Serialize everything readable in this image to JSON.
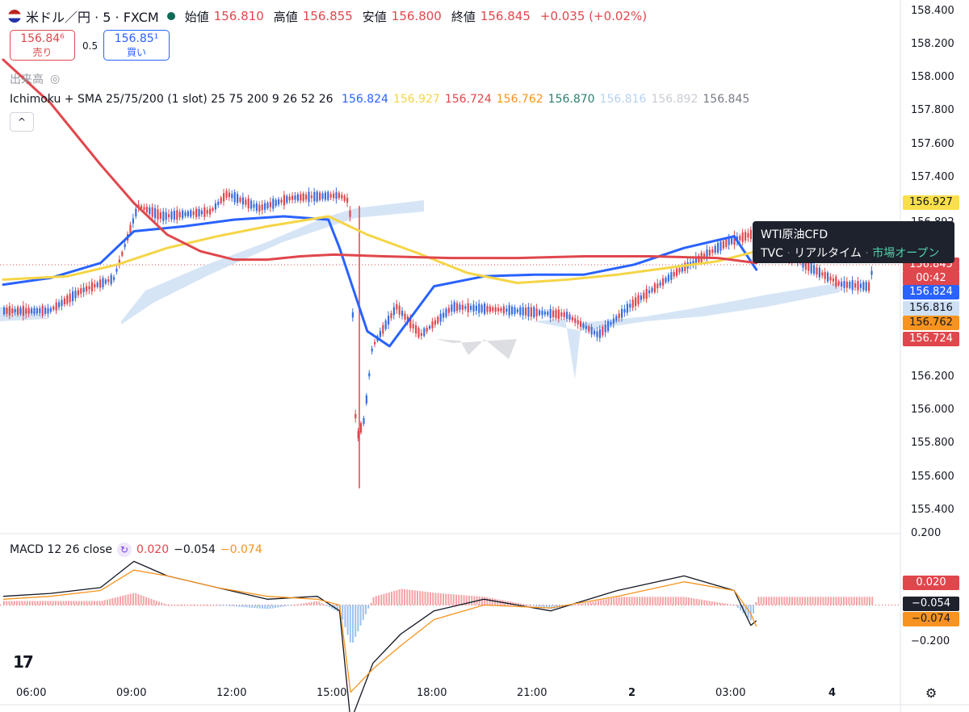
{
  "header": {
    "symbol_title": "米ドル／円 · 5 · FXCM",
    "open_label": "始値",
    "open": "156.810",
    "high_label": "高値",
    "high": "156.855",
    "low_label": "安値",
    "low": "156.800",
    "close_label": "終値",
    "close": "156.845",
    "change": "+0.035 (+0.02%)"
  },
  "trade": {
    "sell_price": "156.84⁶",
    "sell_label": "売り",
    "spread": "0.5",
    "buy_price": "156.85¹",
    "buy_label": "買い"
  },
  "volume_label": "出来高",
  "indicator": {
    "name": "Ichimoku + SMA 25/75/200 (1 slot) 25 75 200 9 26 52 26",
    "values": [
      {
        "v": "156.824",
        "color": "#2962ff"
      },
      {
        "v": "156.927",
        "color": "#f5d547"
      },
      {
        "v": "156.724",
        "color": "#e0474c"
      },
      {
        "v": "156.762",
        "color": "#f7931e"
      },
      {
        "v": "156.870",
        "color": "#2e7d6f"
      },
      {
        "v": "156.816",
        "color": "#b7d3f0"
      },
      {
        "v": "156.892",
        "color": "#c9ccd4"
      },
      {
        "v": "156.845",
        "color": "#787b86"
      }
    ]
  },
  "macd": {
    "label": "MACD 12 26 close",
    "v1": "0.020",
    "v1_color": "#e0474c",
    "v2": "−0.054",
    "v2_color": "#131722",
    "v3": "−0.074",
    "v3_color": "#f7931e"
  },
  "price_axis": [
    "158.400",
    "158.200",
    "158.000",
    "157.800",
    "157.600",
    "157.400",
    "156.892",
    "156.200",
    "156.000",
    "155.800",
    "155.600",
    "155.400"
  ],
  "price_tags": [
    {
      "v": "156.927",
      "bg": "#f9e04b",
      "fg": "#131722"
    },
    {
      "v": "156.845",
      "bg": "#e0474c",
      "fg": "#ffffff"
    },
    {
      "v": "00:42",
      "bg": "#e0474c",
      "fg": "#ffffff"
    },
    {
      "v": "156.824",
      "bg": "#2962ff",
      "fg": "#ffffff"
    },
    {
      "v": "156.816",
      "bg": "#cfe0f5",
      "fg": "#131722"
    },
    {
      "v": "156.762",
      "bg": "#f7931e",
      "fg": "#131722"
    },
    {
      "v": "156.724",
      "bg": "#e0474c",
      "fg": "#ffffff"
    }
  ],
  "macd_axis": [
    "0.200",
    "−0.200"
  ],
  "macd_tags": [
    {
      "v": "0.020",
      "bg": "#e0474c",
      "fg": "#ffffff"
    },
    {
      "v": "−0.054",
      "bg": "#1e222d",
      "fg": "#ffffff"
    },
    {
      "v": "−0.074",
      "bg": "#f7931e",
      "fg": "#131722"
    }
  ],
  "time_axis": [
    "06:00",
    "09:00",
    "12:00",
    "15:00",
    "18:00",
    "21:00",
    "2",
    "03:00",
    "4"
  ],
  "tooltip": {
    "title": "WTI原油CFD",
    "src": "TVC",
    "sep1": "·",
    "mode": "リアルタイム",
    "sep2": "·",
    "status": "市場オープン"
  },
  "logo_text": "17",
  "chart_data": {
    "type": "line",
    "x_label_times": [
      "06:00",
      "09:00",
      "12:00",
      "15:00",
      "18:00",
      "21:00",
      "2",
      "03:00",
      "4"
    ],
    "ylim": [
      155.3,
      158.45
    ],
    "series": [
      {
        "color": "#2962ff",
        "x": [
          "05:35",
          "07:00",
          "08:30",
          "09:30",
          "11:00",
          "12:30",
          "14:00",
          "15:20",
          "15:40",
          "16:30",
          "17:10",
          "18:30",
          "20:00",
          "21:30",
          "23:00",
          "00:30",
          "02:00",
          "03:30",
          "04:10"
        ],
        "values": [
          156.73,
          156.77,
          156.86,
          157.05,
          157.08,
          157.12,
          157.14,
          157.12,
          156.95,
          156.45,
          156.36,
          156.72,
          156.78,
          156.79,
          156.79,
          156.85,
          156.95,
          157.02,
          156.82
        ]
      },
      {
        "color": "#f5d547",
        "x": [
          "05:35",
          "07:30",
          "09:00",
          "10:30",
          "12:00",
          "13:30",
          "15:20",
          "16:30",
          "18:00",
          "19:30",
          "21:00",
          "22:30",
          "00:00",
          "01:30",
          "03:00",
          "04:10"
        ],
        "values": [
          156.76,
          156.78,
          156.85,
          156.95,
          157.02,
          157.08,
          157.14,
          157.03,
          156.92,
          156.8,
          156.74,
          156.76,
          156.79,
          156.83,
          156.87,
          156.93
        ]
      },
      {
        "color": "#e0474c",
        "x": [
          "05:35",
          "07:00",
          "08:30",
          "09:30",
          "10:30",
          "11:30",
          "12:30",
          "13:30",
          "14:30",
          "15:30",
          "17:00",
          "19:00",
          "21:00",
          "23:00",
          "01:00",
          "03:00",
          "04:10"
        ],
        "values": [
          158.08,
          157.82,
          157.45,
          157.22,
          157.03,
          156.93,
          156.88,
          156.88,
          156.9,
          156.91,
          156.9,
          156.89,
          156.89,
          156.9,
          156.9,
          156.89,
          156.86
        ]
      }
    ],
    "macd_series": [
      {
        "name": "MACD",
        "color": "#131722",
        "x": [
          "05:35",
          "07:00",
          "08:30",
          "09:30",
          "10:30",
          "12:00",
          "13:30",
          "15:00",
          "15:40",
          "16:00",
          "16:40",
          "17:30",
          "18:30",
          "20:00",
          "22:00",
          "00:00",
          "02:00",
          "03:30",
          "04:00",
          "04:10"
        ],
        "values": [
          0.03,
          0.04,
          0.06,
          0.15,
          0.1,
          0.06,
          0.02,
          0.03,
          -0.02,
          -0.4,
          -0.2,
          -0.1,
          -0.02,
          0.02,
          -0.02,
          0.05,
          0.1,
          0.05,
          -0.07,
          -0.054
        ]
      },
      {
        "name": "Signal",
        "color": "#f7931e",
        "x": [
          "05:35",
          "07:00",
          "08:30",
          "09:30",
          "10:30",
          "12:00",
          "13:30",
          "15:00",
          "15:40",
          "16:00",
          "16:40",
          "17:30",
          "18:30",
          "20:00",
          "22:00",
          "00:00",
          "02:00",
          "03:30",
          "04:00",
          "04:10"
        ],
        "values": [
          0.02,
          0.03,
          0.05,
          0.12,
          0.1,
          0.06,
          0.03,
          0.02,
          0.0,
          -0.3,
          -0.22,
          -0.14,
          -0.05,
          0.0,
          -0.01,
          0.03,
          0.08,
          0.05,
          -0.03,
          -0.074
        ]
      }
    ],
    "macd_ylim": [
      -0.34,
      0.24
    ]
  }
}
